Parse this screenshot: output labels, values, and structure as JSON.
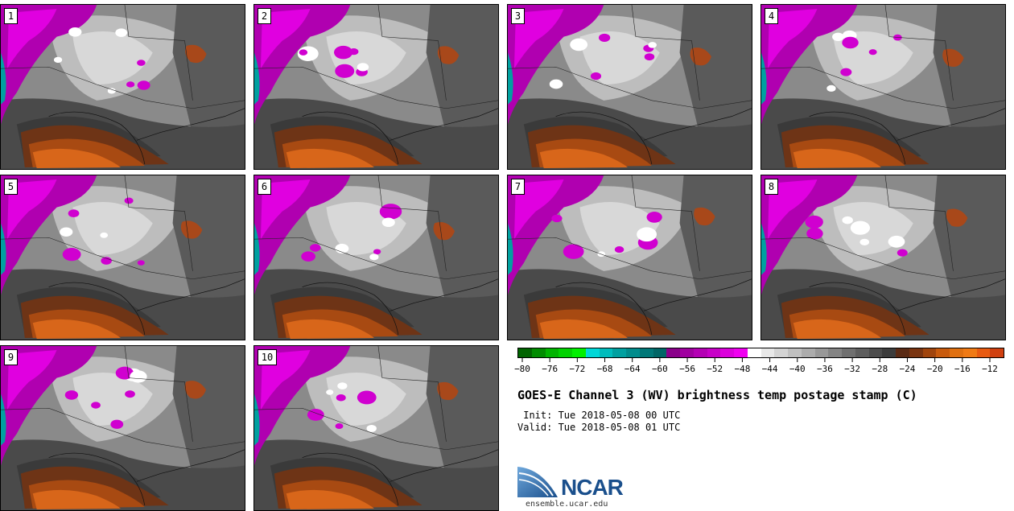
{
  "panels": [
    {
      "label": "1"
    },
    {
      "label": "2"
    },
    {
      "label": "3"
    },
    {
      "label": "4"
    },
    {
      "label": "5"
    },
    {
      "label": "6"
    },
    {
      "label": "7"
    },
    {
      "label": "8"
    },
    {
      "label": "9"
    },
    {
      "label": "10"
    }
  ],
  "colorbar": {
    "colors": [
      "#006400",
      "#008c00",
      "#00b400",
      "#00d200",
      "#00f000",
      "#00d8d8",
      "#00bcbc",
      "#00a0a0",
      "#008c8c",
      "#007878",
      "#006666",
      "#8a008a",
      "#a000a0",
      "#b400b4",
      "#c800c8",
      "#dc00dc",
      "#f000f0",
      "#ffffff",
      "#e8e8e8",
      "#d4d4d4",
      "#c0c0c0",
      "#acacac",
      "#989898",
      "#848484",
      "#707070",
      "#5e5e5e",
      "#4c4c4c",
      "#3c3c3c",
      "#5a2a14",
      "#7a3410",
      "#a0440c",
      "#c85a0c",
      "#e07010",
      "#f07a14",
      "#e85a10",
      "#d04010"
    ],
    "ticks": [
      "−80",
      "−76",
      "−72",
      "−68",
      "−64",
      "−60",
      "−56",
      "−52",
      "−48",
      "−44",
      "−40",
      "−36",
      "−32",
      "−28",
      "−24",
      "−20",
      "−16",
      "−12"
    ]
  },
  "title": "GOES-E Channel 3 (WV) brightness temp postage stamp (C)",
  "init": " Init: Tue 2018-05-08 00 UTC",
  "valid": "Valid: Tue 2018-05-08 01 UTC",
  "logo": {
    "text": "NCAR",
    "url": "ensemble.ucar.edu"
  }
}
